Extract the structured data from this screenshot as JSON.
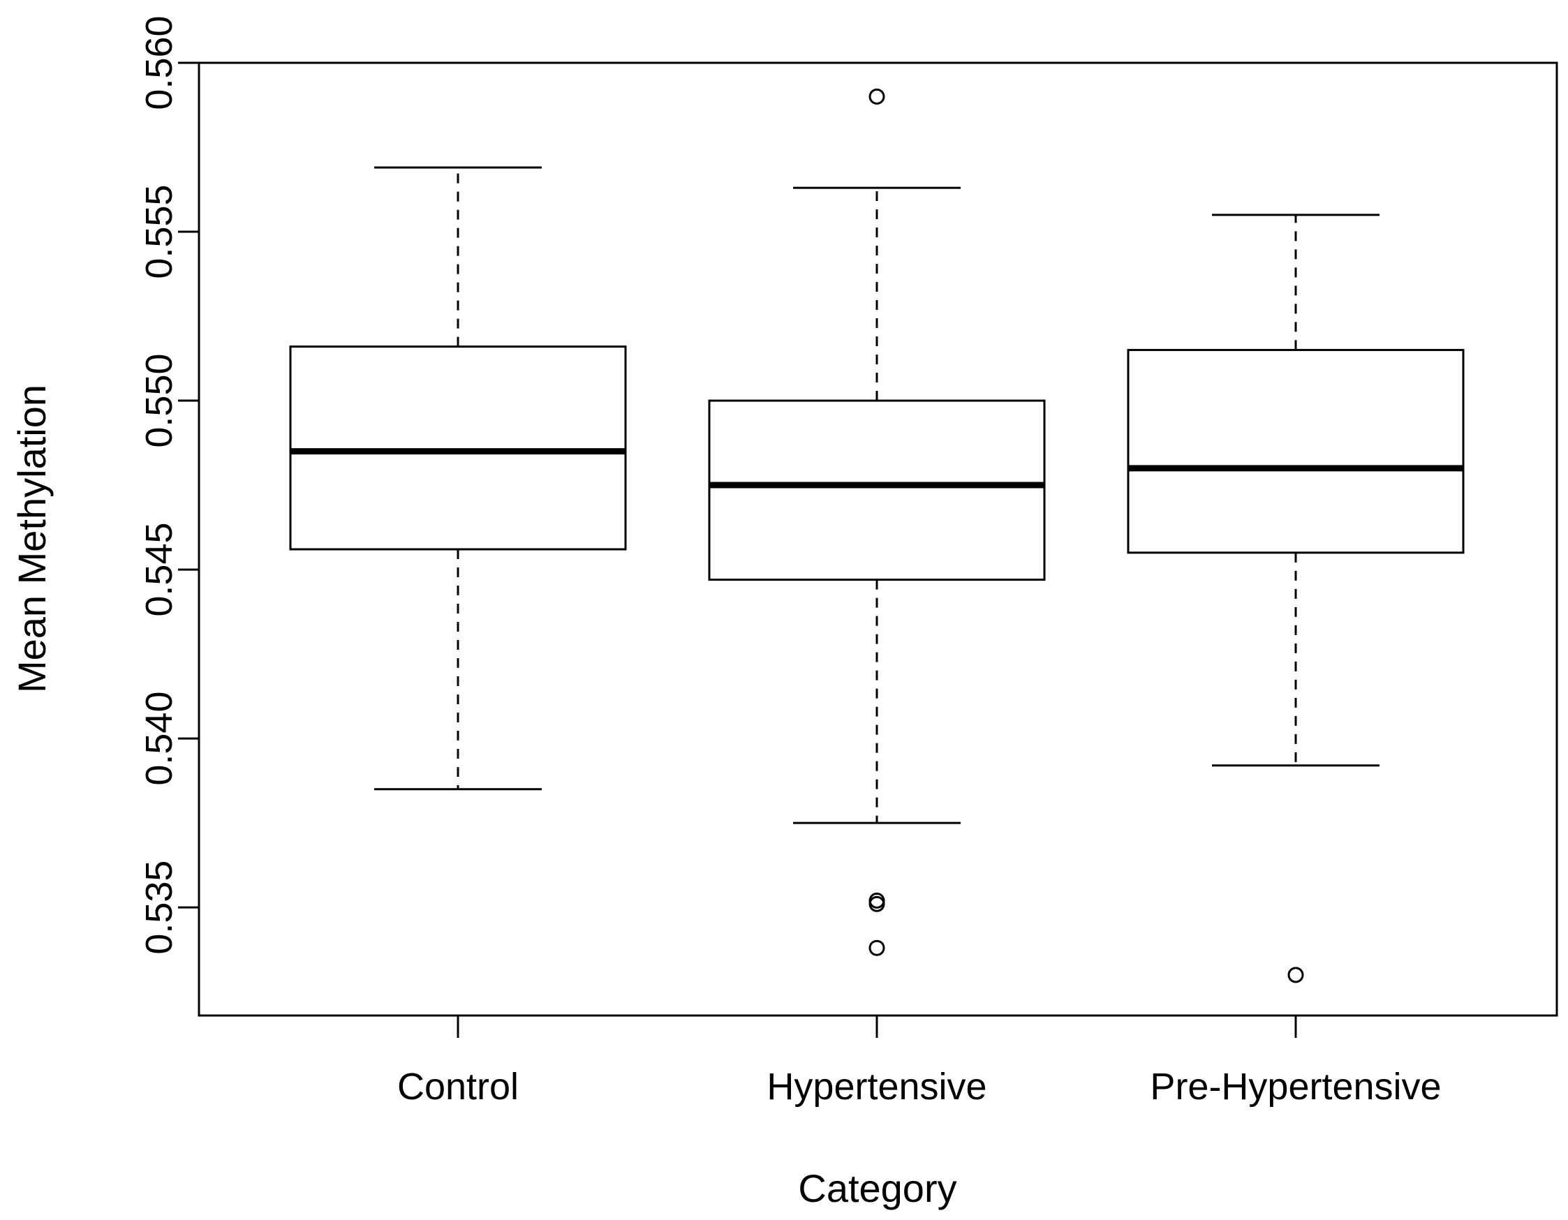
{
  "chart_data": {
    "type": "boxplot",
    "title": "",
    "xlabel": "Category",
    "ylabel": "Mean Methylation",
    "ylim": [
      0.5318,
      0.56
    ],
    "y_ticks": [
      "0.535",
      "0.540",
      "0.545",
      "0.550",
      "0.555",
      "0.560"
    ],
    "categories": [
      "Control",
      "Hypertensive",
      "Pre-Hypertensive"
    ],
    "boxes": [
      {
        "category": "Control",
        "whisker_low": 0.5385,
        "q1": 0.5456,
        "median": 0.5485,
        "q3": 0.5516,
        "whisker_high": 0.5569,
        "outliers": []
      },
      {
        "category": "Hypertensive",
        "whisker_low": 0.5375,
        "q1": 0.5447,
        "median": 0.5475,
        "q3": 0.55,
        "whisker_high": 0.5563,
        "outliers": [
          0.559,
          0.5352,
          0.5351,
          0.5338
        ]
      },
      {
        "category": "Pre-Hypertensive",
        "whisker_low": 0.5392,
        "q1": 0.5455,
        "median": 0.548,
        "q3": 0.5515,
        "whisker_high": 0.5555,
        "outliers": [
          0.533
        ]
      }
    ],
    "grid": false,
    "legend": "none"
  }
}
